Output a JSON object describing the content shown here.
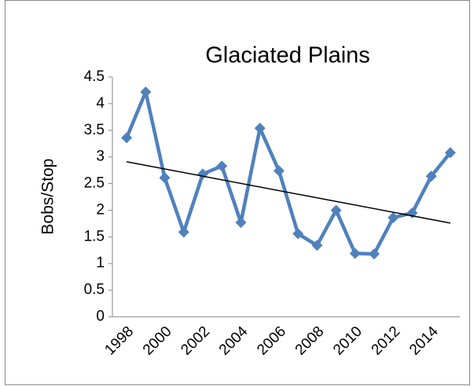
{
  "chart_data": {
    "type": "line",
    "title": "Glaciated Plains",
    "y_label": "Bobs/Stop",
    "categories": [
      "1998",
      null,
      "2000",
      null,
      "2002",
      null,
      "2004",
      null,
      "2006",
      null,
      "2008",
      null,
      "2010",
      null,
      "2012",
      null,
      "2014",
      null
    ],
    "series": [
      {
        "color": "#4f81bd",
        "values": [
          3.36,
          4.22,
          2.61,
          1.59,
          2.68,
          2.83,
          1.77,
          3.54,
          2.74,
          1.56,
          1.34,
          2.0,
          1.19,
          1.18,
          1.86,
          1.95,
          2.64,
          3.08
        ]
      }
    ],
    "trendline": {
      "color": "#000000",
      "values": [
        2.91,
        1.76
      ]
    },
    "ylim": [
      0,
      4.5
    ],
    "yticks": [
      0,
      0.5,
      1,
      1.5,
      2,
      2.5,
      3,
      3.5,
      4,
      4.5
    ],
    "grid": false
  }
}
